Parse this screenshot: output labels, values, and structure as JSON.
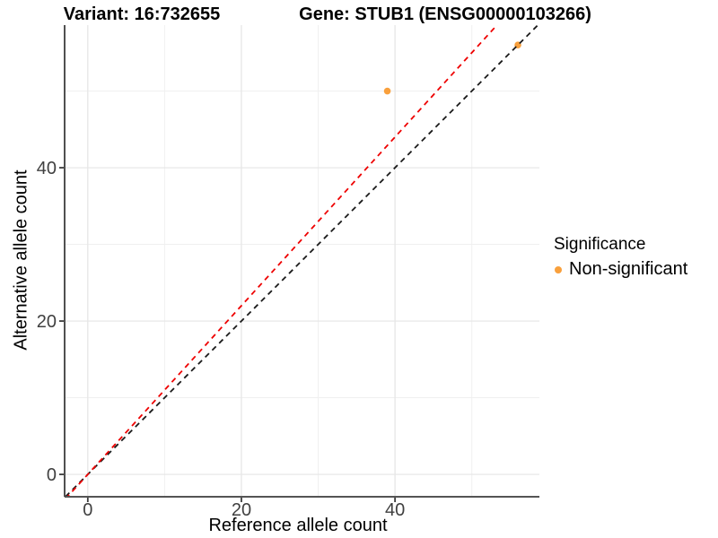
{
  "plot": {
    "title_left": "Variant: 16:732655",
    "title_right": "Gene: STUB1 (ENSG00000103266)",
    "x_label": "Reference allele count",
    "y_label": "Alternative allele count"
  },
  "legend": {
    "title": "Significance",
    "items": [
      {
        "label": "Non-significant",
        "color": "#F9A03C"
      }
    ]
  },
  "colors": {
    "point_orange": "#F9A03C",
    "identity_line": "#1A1A1A",
    "expected_line": "#EE0000",
    "grid_major": "#E5E5E5",
    "grid_minor": "#F0F0F0",
    "axis_line": "#3C3C3C",
    "tick_label": "#404040"
  },
  "chart_data": {
    "type": "scatter",
    "title": "Variant: 16:732655 — Gene: STUB1 (ENSG00000103266)",
    "xlabel": "Reference allele count",
    "ylabel": "Alternative allele count",
    "xlim": [
      -2.9,
      58.8
    ],
    "ylim": [
      -2.8,
      58.6
    ],
    "x_ticks": [
      0,
      20,
      40
    ],
    "y_ticks": [
      0,
      20,
      40
    ],
    "x_minor_ticks": [
      10,
      30,
      50
    ],
    "y_minor_ticks": [
      10,
      30,
      50
    ],
    "grid": true,
    "legend_position": "right",
    "series": [
      {
        "name": "Non-significant",
        "color": "#F9A03C",
        "points": [
          {
            "x": 39,
            "y": 50
          },
          {
            "x": 56,
            "y": 56
          }
        ]
      }
    ],
    "lines": [
      {
        "name": "identity-line",
        "slope": 1.0,
        "intercept": 0,
        "color": "#1A1A1A",
        "style": "dashed"
      },
      {
        "name": "expected-line",
        "slope": 1.1,
        "intercept": 0,
        "color": "#EE0000",
        "style": "dashed"
      }
    ]
  }
}
